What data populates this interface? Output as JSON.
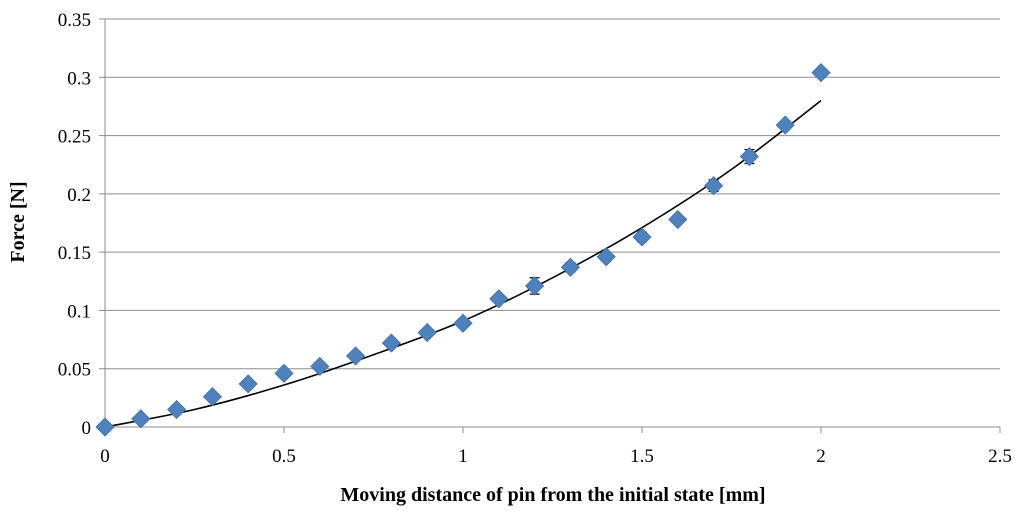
{
  "chart_data": {
    "type": "scatter",
    "xlabel": "Moving distance of pin from the initial state [mm]",
    "ylabel": "Force [N]",
    "xlim": [
      0,
      2.5
    ],
    "ylim": [
      0,
      0.35
    ],
    "x_ticks": [
      "0",
      "0.5",
      "1",
      "1.5",
      "2",
      "2.5"
    ],
    "x_tick_values": [
      0,
      0.5,
      1,
      1.5,
      2,
      2.5
    ],
    "y_ticks": [
      "0",
      "0.05",
      "0.1",
      "0.15",
      "0.2",
      "0.25",
      "0.3",
      "0.35"
    ],
    "y_tick_values": [
      0,
      0.05,
      0.1,
      0.15,
      0.2,
      0.25,
      0.3,
      0.35
    ],
    "grid": "horizontal",
    "legend": "none",
    "series": [
      {
        "marker": "diamond",
        "color": "#4f81bd",
        "x": [
          0,
          0.1,
          0.2,
          0.3,
          0.4,
          0.5,
          0.6,
          0.7,
          0.8,
          0.9,
          1.0,
          1.1,
          1.2,
          1.3,
          1.4,
          1.5,
          1.6,
          1.7,
          1.8,
          1.9,
          2.0
        ],
        "y": [
          0,
          0.007,
          0.015,
          0.026,
          0.037,
          0.046,
          0.052,
          0.061,
          0.072,
          0.081,
          0.089,
          0.11,
          0.121,
          0.137,
          0.146,
          0.163,
          0.178,
          0.207,
          0.232,
          0.259,
          0.304
        ],
        "error": [
          0,
          0.001,
          0.001,
          0.001,
          0.001,
          0.002,
          0.003,
          0.002,
          0.003,
          0.003,
          0.002,
          0.002,
          0.007,
          0.004,
          0.002,
          0.004,
          0.002,
          0.005,
          0.006,
          0.003,
          0.003
        ]
      }
    ],
    "trendline": {
      "type": "polynomial",
      "color": "#000000",
      "x": [
        0,
        0.25,
        0.5,
        0.75,
        1.0,
        1.25,
        1.5,
        1.75,
        2.0
      ],
      "y": [
        0,
        0.015,
        0.036,
        0.062,
        0.091,
        0.128,
        0.171,
        0.221,
        0.28
      ]
    }
  }
}
